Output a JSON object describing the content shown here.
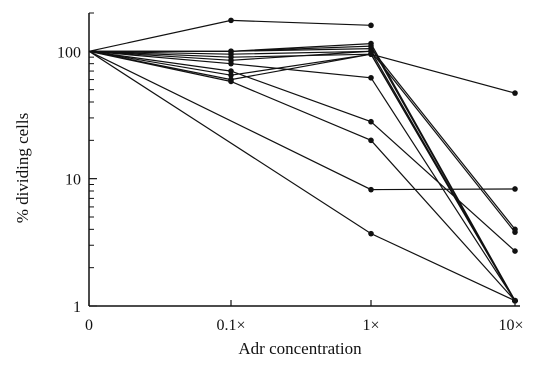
{
  "chart_data": {
    "type": "line",
    "title": "",
    "xlabel": "Adr concentration",
    "ylabel": "% dividing cells",
    "yscale": "log",
    "ylim": [
      1,
      200
    ],
    "grid": false,
    "categories": [
      "0",
      "0.1×",
      "1×",
      "10×"
    ],
    "yticks": [
      {
        "value": 1,
        "label": "1"
      },
      {
        "value": 10,
        "label": "10"
      },
      {
        "value": 100,
        "label": "100"
      }
    ],
    "series": [
      {
        "values": [
          100,
          175,
          160,
          null
        ]
      },
      {
        "values": [
          100,
          100,
          115,
          1.1
        ]
      },
      {
        "values": [
          100,
          100,
          110,
          1.1
        ]
      },
      {
        "values": [
          100,
          100,
          105,
          4.0
        ]
      },
      {
        "values": [
          100,
          95,
          100,
          3.8
        ]
      },
      {
        "values": [
          100,
          90,
          95,
          1.1
        ]
      },
      {
        "values": [
          100,
          85,
          100,
          1.1
        ]
      },
      {
        "values": [
          100,
          80,
          62,
          1.1
        ]
      },
      {
        "values": [
          100,
          70,
          28,
          2.7
        ]
      },
      {
        "values": [
          100,
          65,
          95,
          47
        ]
      },
      {
        "values": [
          100,
          60,
          95,
          1.1
        ]
      },
      {
        "values": [
          100,
          58,
          20,
          1.1
        ]
      },
      {
        "values": [
          100,
          null,
          8.2,
          8.3
        ]
      },
      {
        "values": [
          100,
          null,
          3.7,
          1.1
        ]
      }
    ]
  }
}
